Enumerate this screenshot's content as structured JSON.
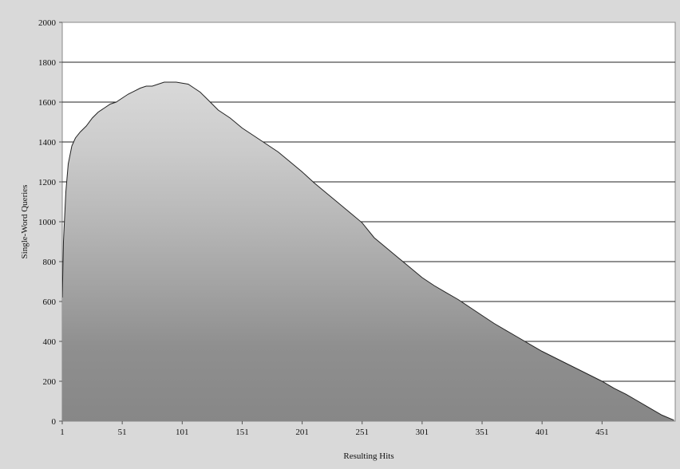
{
  "chart_data": {
    "type": "area",
    "xlabel": "Resulting Hits",
    "ylabel": "Single-Word Queries",
    "ylim": [
      0,
      2000
    ],
    "xlim": [
      1,
      512
    ],
    "grid": true,
    "y_ticks": [
      "0",
      "200",
      "400",
      "600",
      "800",
      "1000",
      "1200",
      "1400",
      "1600",
      "1800",
      "2000"
    ],
    "x_ticks": [
      "1",
      "51",
      "101",
      "151",
      "201",
      "251",
      "301",
      "351",
      "401",
      "451"
    ],
    "colors": {
      "fill_top": "#d7d7d7",
      "fill_bottom": "#878787",
      "line": "#222222",
      "plot_bg": "#ffffff",
      "frame_bg": "#d9d9d9"
    },
    "series": [
      {
        "x": [
          1,
          2,
          4,
          6,
          9,
          12,
          16,
          21,
          26,
          31,
          36,
          41,
          46,
          51,
          56,
          61,
          66,
          71,
          76,
          81,
          86,
          91,
          96,
          101,
          106,
          111,
          116,
          121,
          126,
          131,
          141,
          151,
          161,
          171,
          181,
          191,
          201,
          211,
          221,
          231,
          241,
          251,
          261,
          271,
          281,
          291,
          301,
          311,
          321,
          331,
          341,
          351,
          361,
          371,
          381,
          391,
          401,
          411,
          421,
          431,
          441,
          451,
          461,
          471,
          481,
          491,
          501,
          511
        ],
        "values": [
          620,
          900,
          1150,
          1290,
          1380,
          1420,
          1450,
          1480,
          1520,
          1550,
          1570,
          1590,
          1600,
          1620,
          1640,
          1655,
          1670,
          1680,
          1680,
          1690,
          1700,
          1700,
          1700,
          1695,
          1690,
          1670,
          1650,
          1620,
          1590,
          1560,
          1520,
          1470,
          1430,
          1390,
          1350,
          1300,
          1250,
          1195,
          1145,
          1095,
          1045,
          995,
          920,
          870,
          820,
          770,
          720,
          680,
          645,
          610,
          570,
          530,
          490,
          455,
          420,
          385,
          350,
          320,
          290,
          260,
          230,
          200,
          165,
          135,
          100,
          65,
          30,
          5
        ]
      }
    ]
  }
}
